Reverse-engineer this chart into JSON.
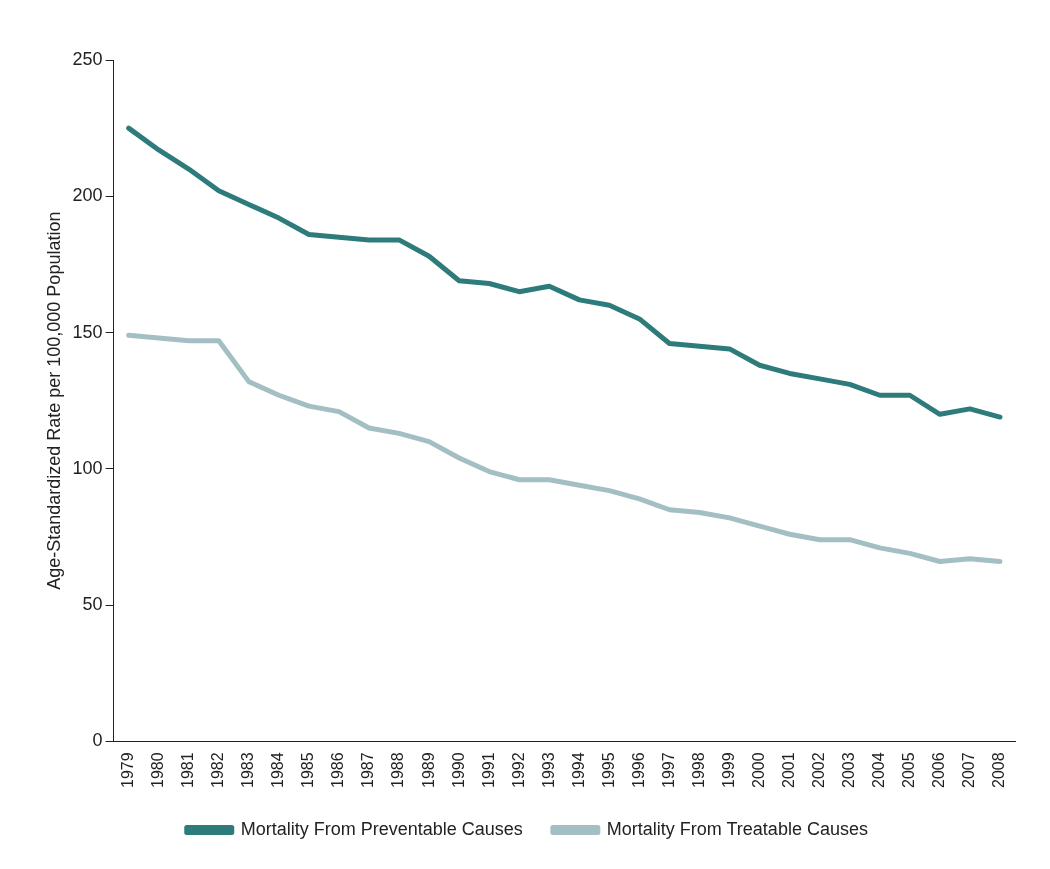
{
  "chart_data": {
    "type": "line",
    "ylabel": "Age-Standardized Rate per 100,000 Population",
    "categories": [
      "1979",
      "1980",
      "1981",
      "1982",
      "1983",
      "1984",
      "1985",
      "1986",
      "1987",
      "1988",
      "1989",
      "1990",
      "1991",
      "1992",
      "1993",
      "1994",
      "1995",
      "1996",
      "1997",
      "1998",
      "1999",
      "2000",
      "2001",
      "2002",
      "2003",
      "2004",
      "2005",
      "2006",
      "2007",
      "2008"
    ],
    "series": [
      {
        "name": "Mortality From Preventable Causes",
        "color": "#2e7b7b",
        "values": [
          225,
          217,
          210,
          202,
          197,
          192,
          186,
          185,
          184,
          184,
          178,
          169,
          168,
          165,
          167,
          162,
          160,
          155,
          146,
          145,
          144,
          138,
          135,
          133,
          131,
          127,
          127,
          120,
          122,
          119
        ]
      },
      {
        "name": "Mortality From Treatable Causes",
        "color": "#a3bfc4",
        "values": [
          149,
          148,
          147,
          147,
          132,
          127,
          123,
          121,
          115,
          113,
          110,
          104,
          99,
          96,
          96,
          94,
          92,
          89,
          85,
          84,
          82,
          79,
          76,
          74,
          74,
          71,
          69,
          66,
          67,
          66
        ]
      }
    ],
    "ylim": [
      0,
      250
    ],
    "yticks": [
      0,
      50,
      100,
      150,
      200,
      250
    ],
    "grid": false,
    "legend": "bottom",
    "marker": "none",
    "line_style": "solid"
  }
}
